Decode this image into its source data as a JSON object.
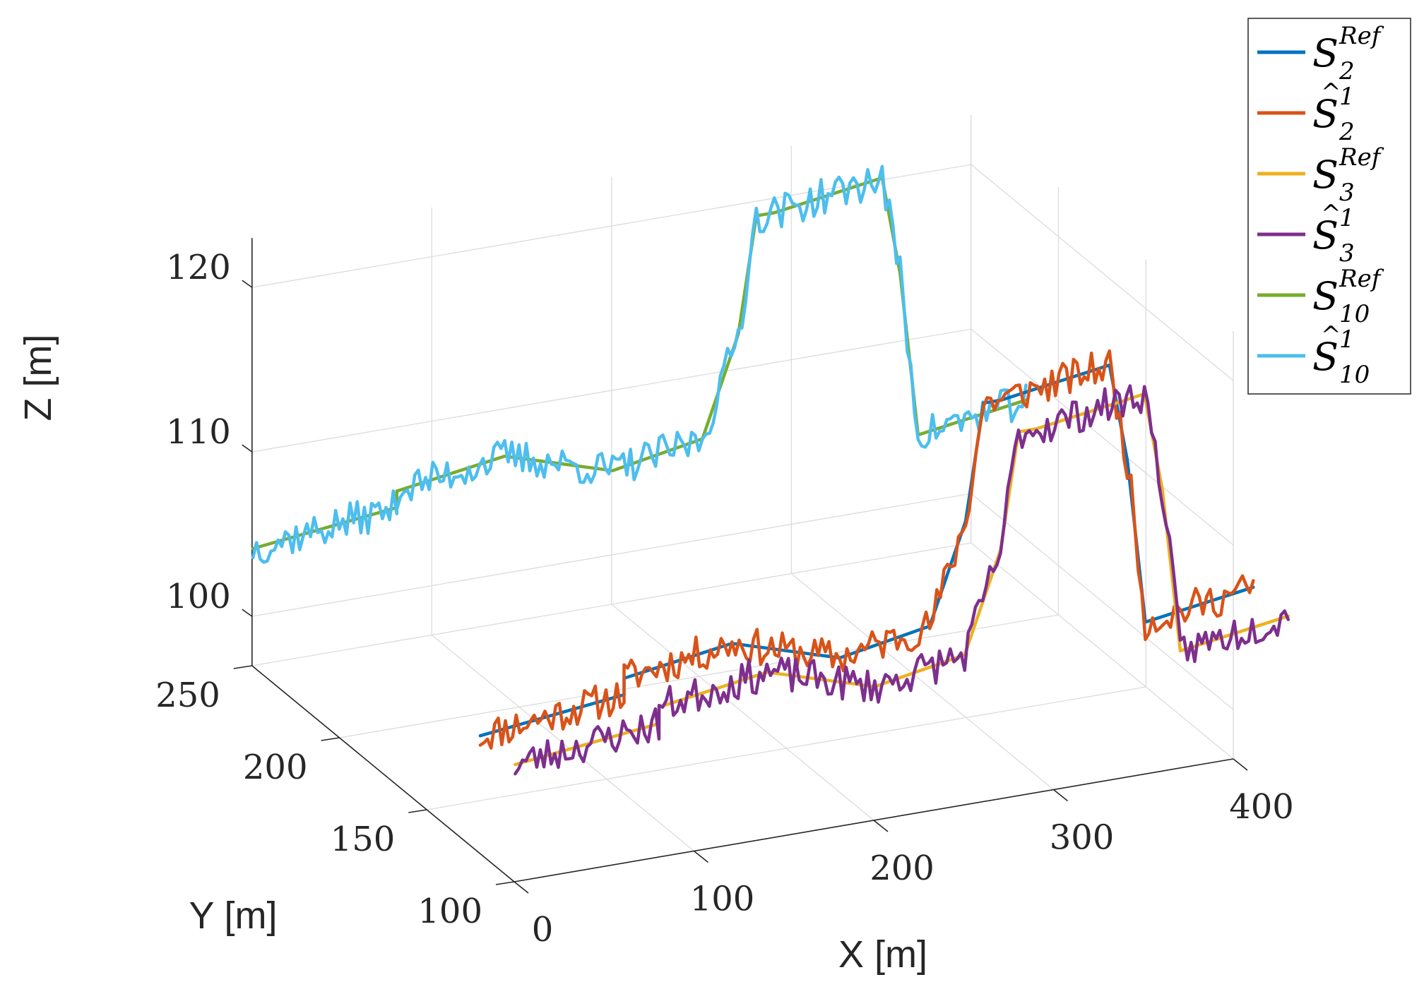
{
  "chart_data": {
    "type": "line",
    "projection": "3d",
    "xlabel": "X [m]",
    "ylabel": "Y [m]",
    "zlabel": "Z [m]",
    "xlim": [
      0,
      400
    ],
    "ylim": [
      100,
      250
    ],
    "zlim": [
      97,
      123
    ],
    "grid": true,
    "legend_location": "top-right",
    "x_ticks": [
      "0",
      "100",
      "200",
      "300",
      "400"
    ],
    "y_ticks": [
      "100",
      "150",
      "200",
      "250"
    ],
    "z_ticks": [
      "100",
      "110",
      "120"
    ],
    "x_tick_values": [
      0,
      100,
      200,
      300,
      400
    ],
    "y_tick_values": [
      100,
      150,
      200,
      250
    ],
    "z_tick_values": [
      100,
      110,
      120
    ],
    "legend": [
      {
        "base": "S",
        "hat": false,
        "sub": "2",
        "sup": "Ref",
        "color": "#0072BD"
      },
      {
        "base": "S",
        "hat": true,
        "sub": "2",
        "sup": "1",
        "color": "#D95319"
      },
      {
        "base": "S",
        "hat": false,
        "sub": "3",
        "sup": "Ref",
        "color": "#EDB120"
      },
      {
        "base": "S",
        "hat": true,
        "sub": "3",
        "sup": "1",
        "color": "#7E2F8E"
      },
      {
        "base": "S",
        "hat": false,
        "sub": "10",
        "sup": "Ref",
        "color": "#77AC30"
      },
      {
        "base": "S",
        "hat": true,
        "sub": "10",
        "sup": "1",
        "color": "#4DBEEE"
      }
    ],
    "series": [
      {
        "name": "S2 Ref",
        "color": "#0072BD",
        "noisy": false,
        "x": [
          20,
          100,
          100,
          160,
          220,
          270,
          290,
          300,
          310,
          370,
          380,
          390,
          450
        ],
        "y": [
          140,
          140,
          140,
          140,
          140,
          140,
          140,
          140,
          140,
          140,
          140,
          140,
          140
        ],
        "z": [
          102,
          103,
          104,
          105,
          103,
          104,
          110,
          117,
          117,
          118,
          112,
          102,
          103
        ]
      },
      {
        "name": "S2 estimate",
        "color": "#D95319",
        "noisy": true,
        "seed": 11,
        "noise": 1.0,
        "x": [
          20,
          100,
          100,
          160,
          220,
          270,
          290,
          300,
          310,
          370,
          380,
          390,
          450
        ],
        "y": [
          140,
          140,
          140,
          140,
          140,
          140,
          140,
          140,
          140,
          140,
          140,
          140,
          140
        ],
        "z": [
          102,
          103,
          104,
          105,
          103,
          104,
          110,
          117,
          117,
          118,
          112,
          102,
          103
        ]
      },
      {
        "name": "S3 Ref",
        "color": "#EDB120",
        "noisy": false,
        "x": [
          20,
          100,
          100,
          160,
          220,
          270,
          290,
          300,
          310,
          370,
          380,
          390,
          450
        ],
        "y": [
          120,
          120,
          120,
          120,
          120,
          120,
          120,
          120,
          120,
          120,
          120,
          120,
          120
        ],
        "z": [
          102,
          103,
          104,
          105,
          103,
          104,
          110,
          117,
          117,
          118,
          112,
          102,
          103
        ]
      },
      {
        "name": "S3 estimate",
        "color": "#7E2F8E",
        "noisy": true,
        "seed": 23,
        "noise": 1.0,
        "x": [
          20,
          100,
          100,
          160,
          220,
          270,
          290,
          300,
          310,
          370,
          380,
          390,
          450
        ],
        "y": [
          120,
          120,
          120,
          120,
          120,
          120,
          120,
          120,
          120,
          120,
          120,
          120,
          120
        ],
        "z": [
          102,
          103,
          104,
          105,
          103,
          104,
          110,
          117,
          117,
          118,
          112,
          102,
          103
        ]
      },
      {
        "name": "S10 Ref",
        "color": "#77AC30",
        "noisy": false,
        "x": [
          20,
          100,
          100,
          160,
          220,
          270,
          290,
          300,
          310,
          370,
          380,
          390,
          450
        ],
        "y": [
          270,
          270,
          270,
          270,
          270,
          270,
          270,
          270,
          270,
          270,
          270,
          270,
          270
        ],
        "z": [
          102,
          103,
          104,
          105,
          103,
          104,
          110,
          117,
          117,
          118,
          112,
          102,
          103
        ]
      },
      {
        "name": "S10 estimate",
        "color": "#4DBEEE",
        "noisy": true,
        "seed": 37,
        "noise": 1.0,
        "x": [
          20,
          100,
          100,
          160,
          220,
          270,
          290,
          300,
          310,
          370,
          380,
          390,
          450
        ],
        "y": [
          270,
          270,
          270,
          270,
          270,
          270,
          270,
          270,
          270,
          270,
          270,
          270,
          270
        ],
        "z": [
          102,
          103,
          104,
          105,
          103,
          104,
          110,
          117,
          117,
          118,
          112,
          102,
          103
        ]
      }
    ]
  }
}
